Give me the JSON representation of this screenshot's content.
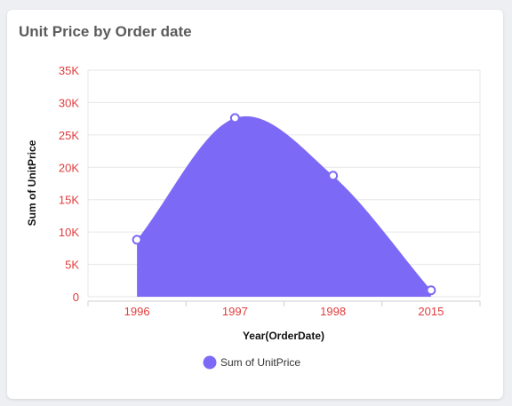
{
  "card": {
    "title": "Unit Price by Order date"
  },
  "colors": {
    "series": "#7c6af6",
    "tick": "#e23c3c",
    "grid": "#e6e6e6",
    "axis_title": "#111111"
  },
  "chart_data": {
    "type": "area",
    "title": "Unit Price by Order date",
    "xlabel": "Year(OrderDate)",
    "ylabel": "Sum of UnitPrice",
    "categories": [
      "1996",
      "1997",
      "1998",
      "2015"
    ],
    "series": [
      {
        "name": "Sum of UnitPrice",
        "values": [
          8800,
          27600,
          18700,
          1000
        ]
      }
    ],
    "ylim": [
      0,
      35000
    ],
    "yticks": [
      "0",
      "5K",
      "10K",
      "15K",
      "20K",
      "25K",
      "30K",
      "35K"
    ],
    "ytick_values": [
      0,
      5000,
      10000,
      15000,
      20000,
      25000,
      30000,
      35000
    ],
    "grid": true,
    "legend": "bottom-center",
    "smooth": true
  }
}
